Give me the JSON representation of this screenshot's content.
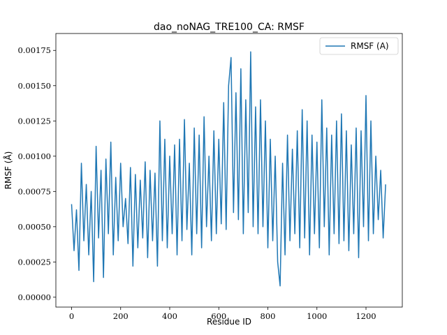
{
  "chart_data": {
    "type": "line",
    "title": "dao_noNAG_TRE100_CA: RMSF",
    "xlabel": "Residue ID",
    "ylabel": "RMSF (Å)",
    "legend": "upper right",
    "x": [
      0,
      10,
      20,
      30,
      40,
      50,
      60,
      70,
      80,
      90,
      100,
      110,
      120,
      130,
      140,
      150,
      160,
      170,
      180,
      190,
      200,
      210,
      220,
      230,
      240,
      250,
      260,
      270,
      280,
      290,
      300,
      310,
      320,
      330,
      340,
      350,
      360,
      370,
      380,
      390,
      400,
      410,
      420,
      430,
      440,
      450,
      460,
      470,
      480,
      490,
      500,
      510,
      520,
      530,
      540,
      550,
      560,
      570,
      580,
      590,
      600,
      610,
      620,
      630,
      640,
      650,
      660,
      670,
      680,
      690,
      700,
      710,
      720,
      730,
      740,
      750,
      760,
      770,
      780,
      790,
      800,
      810,
      820,
      830,
      840,
      850,
      860,
      870,
      880,
      890,
      900,
      910,
      920,
      930,
      940,
      950,
      960,
      970,
      980,
      990,
      1000,
      1010,
      1020,
      1030,
      1040,
      1050,
      1060,
      1070,
      1080,
      1090,
      1100,
      1110,
      1120,
      1130,
      1140,
      1150,
      1160,
      1170,
      1180,
      1190,
      1200,
      1210,
      1220,
      1230,
      1240,
      1250,
      1260,
      1270,
      1280
    ],
    "series": [
      {
        "name": "RMSF (A)",
        "color": "#1f77b4",
        "values": [
          0.00066,
          0.00033,
          0.00062,
          0.00019,
          0.00095,
          0.0004,
          0.0008,
          0.0003,
          0.00075,
          0.00011,
          0.00107,
          0.00042,
          0.0009,
          0.00014,
          0.00098,
          0.00045,
          0.0011,
          0.0003,
          0.00085,
          0.0004,
          0.00095,
          0.0005,
          0.0007,
          0.00038,
          0.00092,
          0.00022,
          0.00087,
          0.00035,
          0.00083,
          0.00042,
          0.00096,
          0.00028,
          0.0009,
          0.0004,
          0.00088,
          0.00022,
          0.00125,
          0.0004,
          0.00112,
          0.00035,
          0.001,
          0.00045,
          0.00108,
          0.0003,
          0.00112,
          0.0004,
          0.00126,
          0.00048,
          0.00095,
          0.0003,
          0.0012,
          0.00045,
          0.00115,
          0.00035,
          0.00128,
          0.0005,
          0.001,
          0.0004,
          0.00118,
          0.00045,
          0.00112,
          0.00052,
          0.00138,
          0.00048,
          0.0015,
          0.0017,
          0.0006,
          0.00145,
          0.00055,
          0.00162,
          0.00045,
          0.0014,
          0.0006,
          0.00174,
          0.0005,
          0.00135,
          0.00045,
          0.0014,
          0.0005,
          0.00125,
          0.00035,
          0.00112,
          0.0004,
          0.001,
          0.00025,
          8e-05,
          0.00095,
          0.0003,
          0.00115,
          0.0004,
          0.00105,
          0.00045,
          0.00118,
          0.00035,
          0.00133,
          0.00042,
          0.00125,
          0.0003,
          0.00115,
          0.00045,
          0.0011,
          0.00035,
          0.0014,
          0.0005,
          0.0012,
          0.0003,
          0.00115,
          0.00045,
          0.00125,
          0.00038,
          0.0013,
          0.0004,
          0.00118,
          0.00033,
          0.00108,
          0.00045,
          0.0012,
          0.00028,
          0.00118,
          0.0005,
          0.00143,
          0.0004,
          0.00125,
          0.00045,
          0.001,
          0.00055,
          0.0009,
          0.00042,
          0.0008
        ]
      }
    ],
    "xlim": [
      -64,
      1348
    ],
    "xticks": [
      0,
      200,
      400,
      600,
      800,
      1000,
      1200
    ],
    "ylim": [
      -7e-05,
      0.00187
    ],
    "yticks": [
      {
        "value": 0,
        "label": "0.00000"
      },
      {
        "value": 0.00025,
        "label": "0.00025"
      },
      {
        "value": 0.0005,
        "label": "0.00050"
      },
      {
        "value": 0.00075,
        "label": "0.00075"
      },
      {
        "value": 0.001,
        "label": "0.00100"
      },
      {
        "value": 0.00125,
        "label": "0.00125"
      },
      {
        "value": 0.0015,
        "label": "0.00150"
      },
      {
        "value": 0.00175,
        "label": "0.00175"
      }
    ],
    "grid": false
  }
}
